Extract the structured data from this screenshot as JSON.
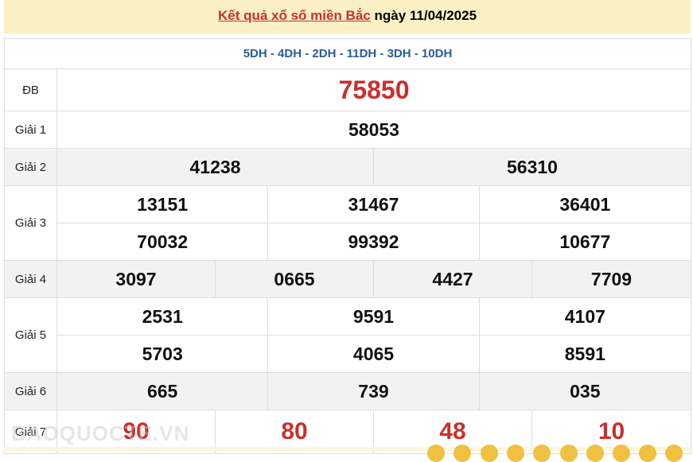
{
  "header": {
    "link": "Kết quả xổ số miền Bắc",
    "date_text": " ngày 11/04/2025"
  },
  "codes": "5DH - 4DH - 2DH - 11DH - 3DH - 10DH",
  "prizes": [
    {
      "label": "ĐB",
      "rows": [
        [
          "75850"
        ]
      ],
      "red": true
    },
    {
      "label": "Giải 1",
      "rows": [
        [
          "58053"
        ]
      ]
    },
    {
      "label": "Giải 2",
      "rows": [
        [
          "41238",
          "56310"
        ]
      ],
      "gray": true
    },
    {
      "label": "Giải 3",
      "rows": [
        [
          "13151",
          "31467",
          "36401"
        ],
        [
          "70032",
          "99392",
          "10677"
        ]
      ]
    },
    {
      "label": "Giải 4",
      "rows": [
        [
          "3097",
          "0665",
          "4427",
          "7709"
        ]
      ],
      "gray": true
    },
    {
      "label": "Giải 5",
      "rows": [
        [
          "2531",
          "9591",
          "4107"
        ],
        [
          "5703",
          "4065",
          "8591"
        ]
      ]
    },
    {
      "label": "Giải 6",
      "rows": [
        [
          "665",
          "739",
          "035"
        ]
      ],
      "gray": true
    },
    {
      "label": "Giải 7",
      "rows": [
        [
          "90",
          "80",
          "48",
          "10"
        ]
      ],
      "red": true
    }
  ],
  "watermark": "BAOQUOCTE.VN",
  "colors": {
    "accent_red": "#c9302c",
    "code_blue": "#2c5a9a",
    "header_bg": "#fbf0c4"
  }
}
